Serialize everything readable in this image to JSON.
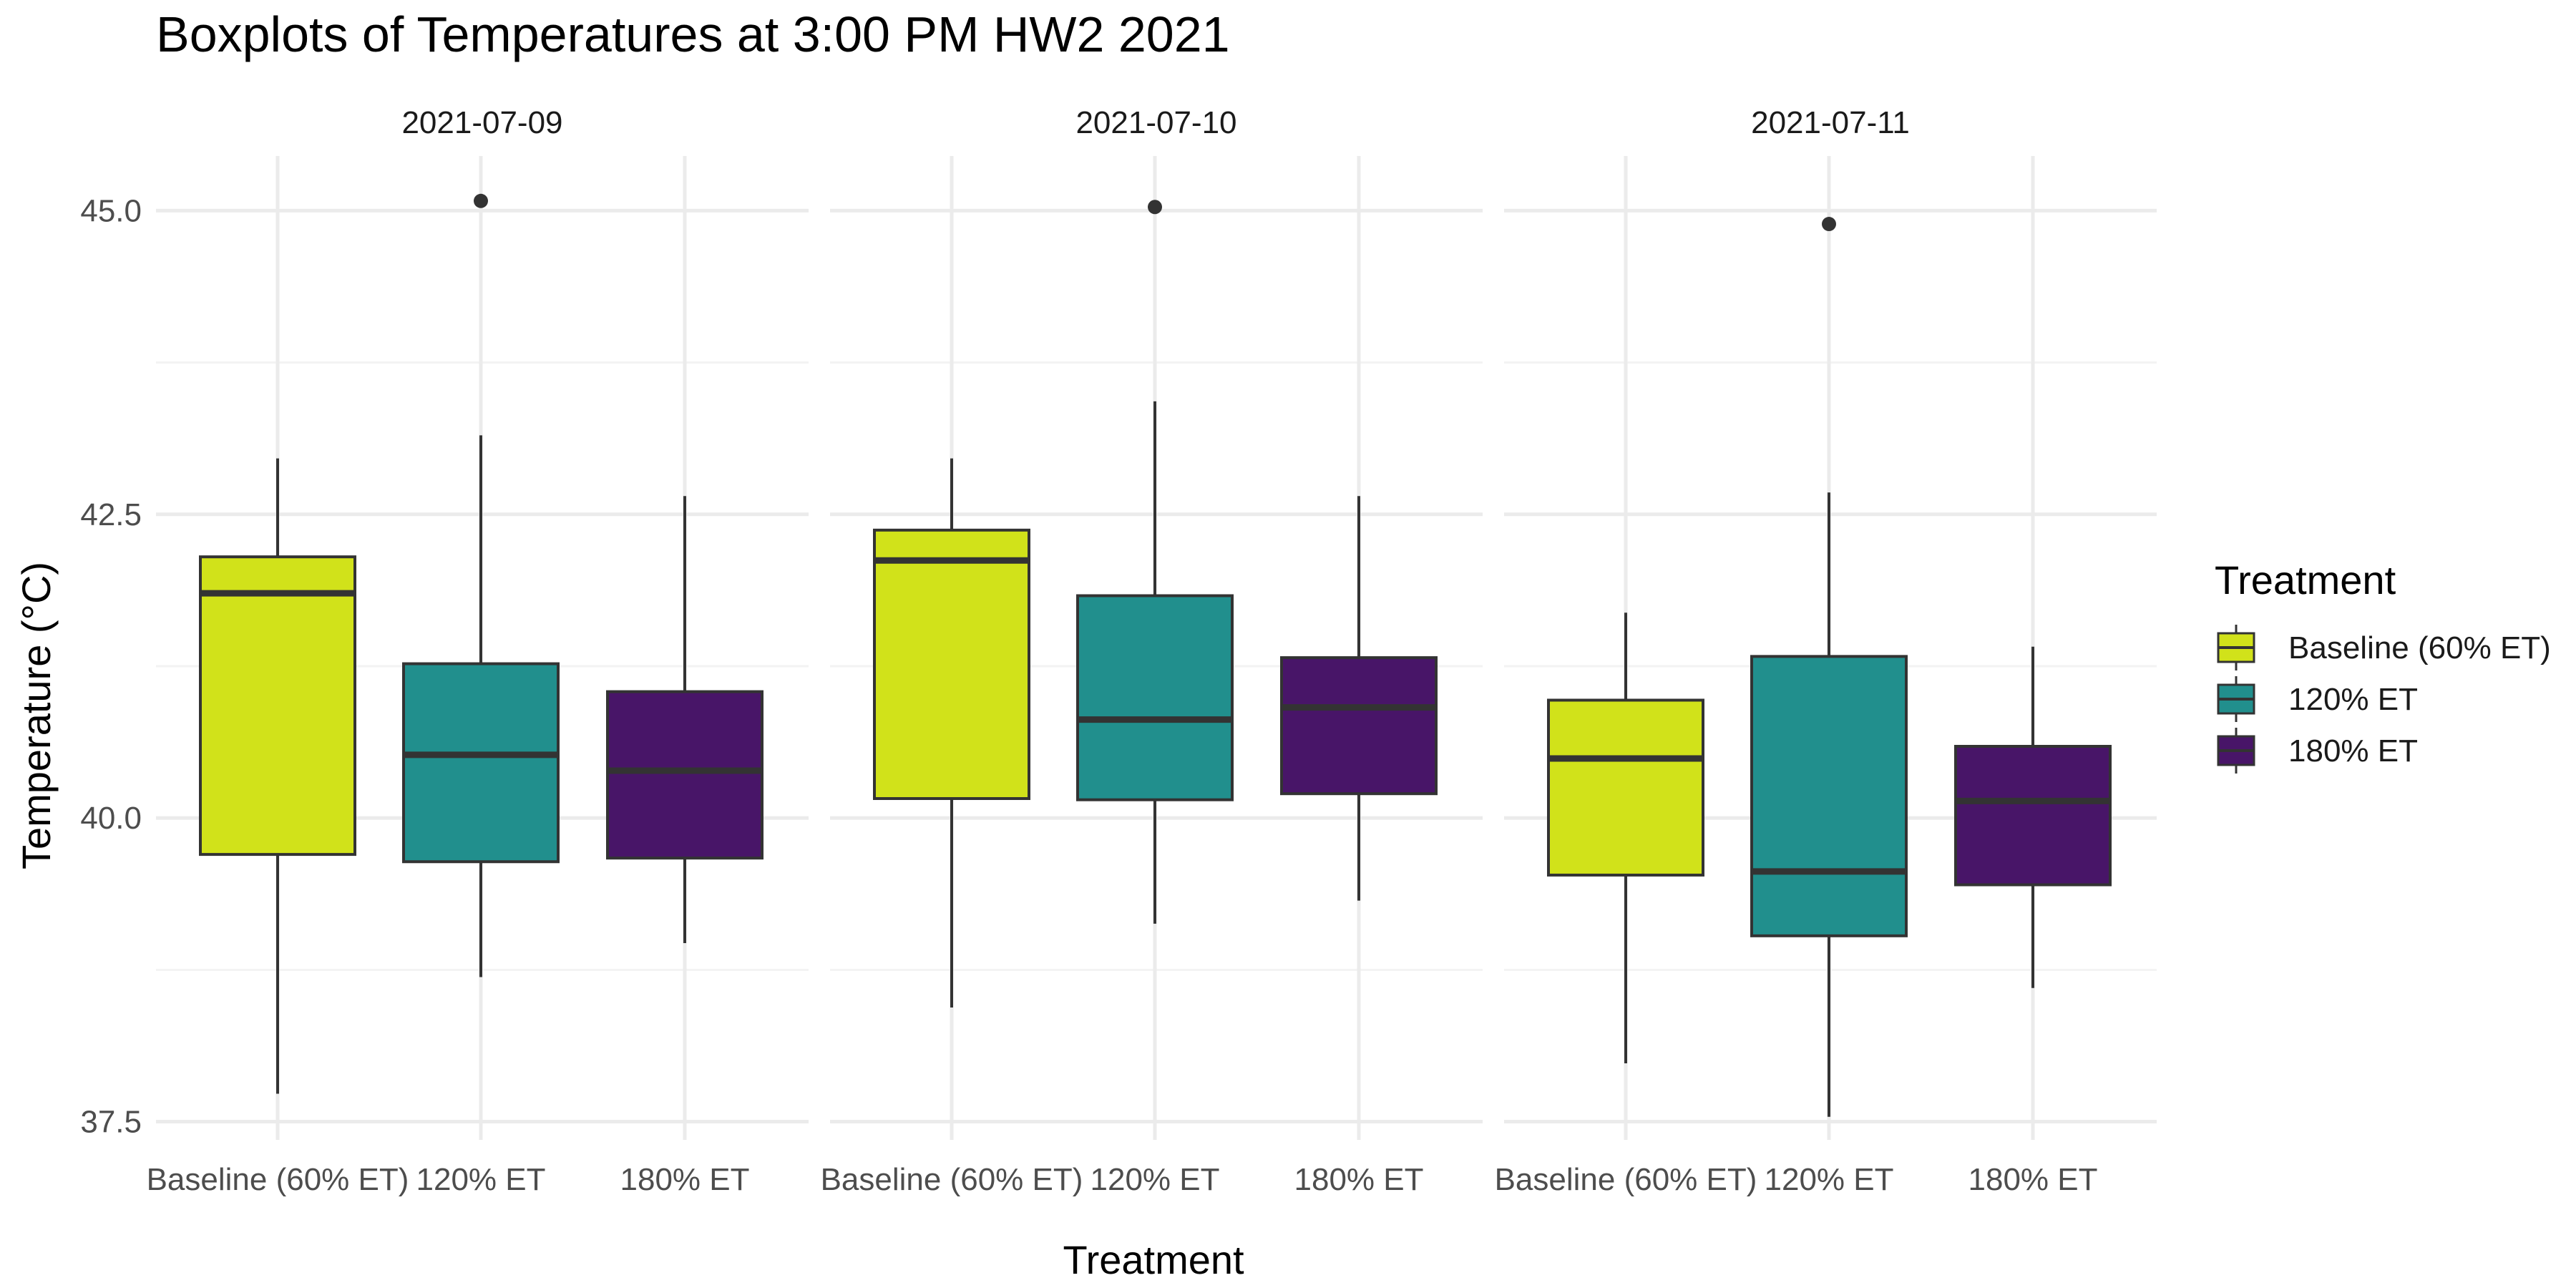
{
  "chart_data": {
    "type": "boxplot",
    "title": "Boxplots of Temperatures at 3:00 PM HW2 2021",
    "xlabel": "Treatment",
    "ylabel": "Temperature (°C)",
    "ylim": [
      37.35,
      45.45
    ],
    "yticks": [
      37.5,
      40.0,
      42.5,
      45.0
    ],
    "ytick_labels": [
      "37.5",
      "40.0",
      "42.5",
      "45.0"
    ],
    "categories": [
      "Baseline (60% ET)",
      "120% ET",
      "180% ET"
    ],
    "grid": true,
    "legend": {
      "title": "Treatment",
      "position": "right",
      "entries": [
        "Baseline (60% ET)",
        "120% ET",
        "180% ET"
      ]
    },
    "colors": {
      "Baseline (60% ET)": "#d1e21a",
      "120% ET": "#218f8d",
      "180% ET": "#481568"
    },
    "outline_color": "#333333",
    "panels": [
      {
        "label": "2021-07-09",
        "boxes": [
          {
            "group": "Baseline (60% ET)",
            "whisker_low": 37.73,
            "q1": 39.7,
            "median": 41.85,
            "q3": 42.15,
            "whisker_high": 42.96,
            "outliers": []
          },
          {
            "group": "120% ET",
            "whisker_low": 38.69,
            "q1": 39.64,
            "median": 40.52,
            "q3": 41.27,
            "whisker_high": 43.15,
            "outliers": [
              45.08
            ]
          },
          {
            "group": "180% ET",
            "whisker_low": 38.97,
            "q1": 39.67,
            "median": 40.39,
            "q3": 41.04,
            "whisker_high": 42.65,
            "outliers": []
          }
        ]
      },
      {
        "label": "2021-07-10",
        "boxes": [
          {
            "group": "Baseline (60% ET)",
            "whisker_low": 38.44,
            "q1": 40.16,
            "median": 42.12,
            "q3": 42.37,
            "whisker_high": 42.96,
            "outliers": []
          },
          {
            "group": "120% ET",
            "whisker_low": 39.13,
            "q1": 40.15,
            "median": 40.81,
            "q3": 41.83,
            "whisker_high": 43.43,
            "outliers": [
              45.03
            ]
          },
          {
            "group": "180% ET",
            "whisker_low": 39.32,
            "q1": 40.2,
            "median": 40.91,
            "q3": 41.32,
            "whisker_high": 42.65,
            "outliers": []
          }
        ]
      },
      {
        "label": "2021-07-11",
        "boxes": [
          {
            "group": "Baseline (60% ET)",
            "whisker_low": 37.98,
            "q1": 39.53,
            "median": 40.49,
            "q3": 40.97,
            "whisker_high": 41.69,
            "outliers": []
          },
          {
            "group": "120% ET",
            "whisker_low": 37.54,
            "q1": 39.03,
            "median": 39.56,
            "q3": 41.33,
            "whisker_high": 42.68,
            "outliers": [
              44.89
            ]
          },
          {
            "group": "180% ET",
            "whisker_low": 38.6,
            "q1": 39.45,
            "median": 40.14,
            "q3": 40.59,
            "whisker_high": 41.41,
            "outliers": []
          }
        ]
      }
    ]
  }
}
